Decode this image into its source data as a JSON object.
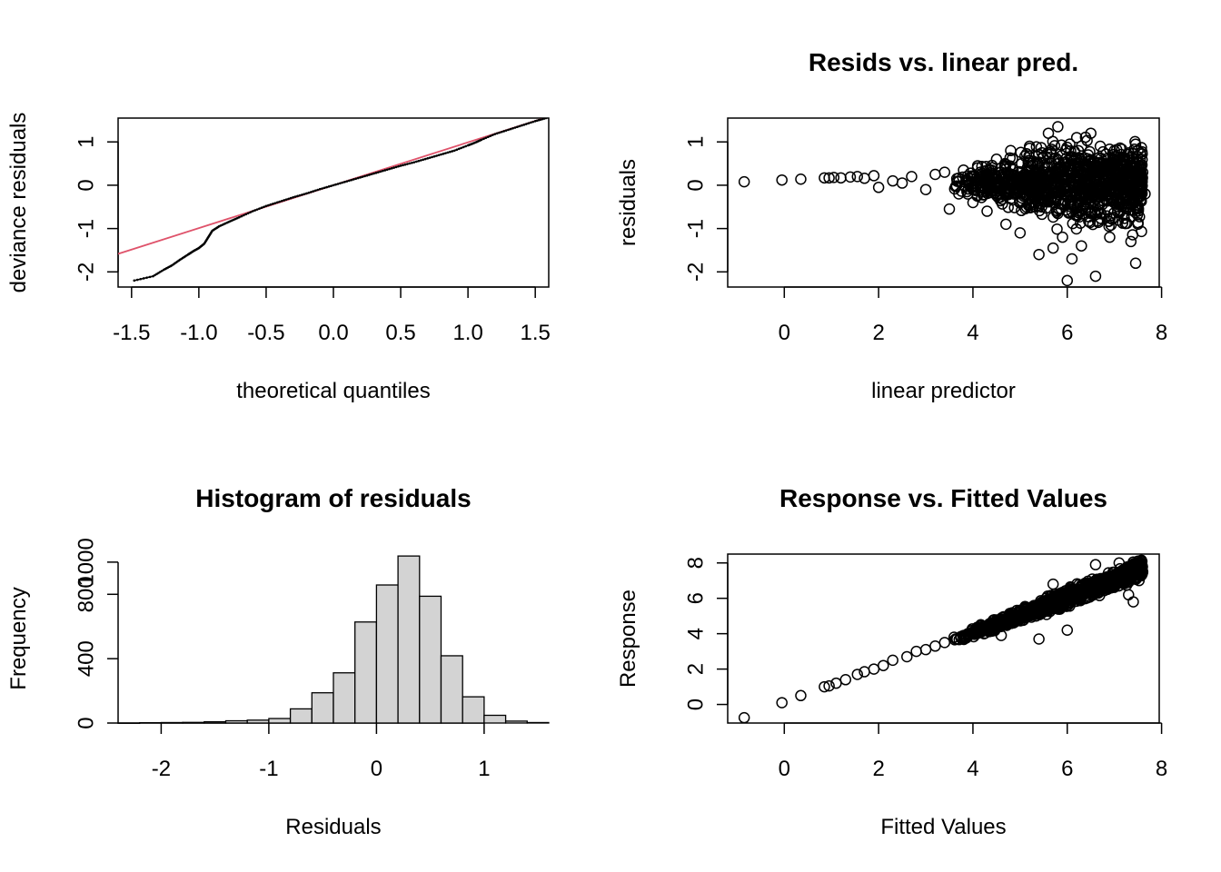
{
  "chart_data": [
    {
      "type": "scatter",
      "title": "",
      "xlabel": "theoretical quantiles",
      "ylabel": "deviance residuals",
      "xlim": [
        -1.6,
        1.6
      ],
      "ylim": [
        -2.35,
        1.55
      ],
      "xticks": [
        -1.5,
        -1.0,
        -0.5,
        0.0,
        0.5,
        1.0,
        1.5
      ],
      "xtick_labels": [
        "-1.5",
        "-1.0",
        "-0.5",
        "0.0",
        "0.5",
        "1.0",
        "1.5"
      ],
      "yticks": [
        -2,
        -1,
        0,
        1
      ],
      "ytick_labels": [
        "-2",
        "-1",
        "0",
        "1"
      ],
      "reference_line": {
        "intercept": 0.0,
        "slope": 0.99,
        "color": "#DF536B"
      },
      "points": [
        [
          -1.48,
          -2.2
        ],
        [
          -1.34,
          -2.1
        ],
        [
          -1.26,
          -1.95
        ],
        [
          -1.2,
          -1.85
        ],
        [
          -1.14,
          -1.72
        ],
        [
          -1.08,
          -1.6
        ],
        [
          -1.04,
          -1.52
        ],
        [
          -1.0,
          -1.45
        ],
        [
          -0.96,
          -1.35
        ],
        [
          -0.93,
          -1.2
        ],
        [
          -0.9,
          -1.05
        ],
        [
          -0.85,
          -0.95
        ],
        [
          -0.78,
          -0.85
        ],
        [
          -0.7,
          -0.74
        ],
        [
          -0.6,
          -0.6
        ],
        [
          -0.5,
          -0.48
        ],
        [
          -0.4,
          -0.38
        ],
        [
          -0.3,
          -0.28
        ],
        [
          -0.2,
          -0.19
        ],
        [
          -0.1,
          -0.09
        ],
        [
          0.0,
          0.0
        ],
        [
          0.1,
          0.09
        ],
        [
          0.2,
          0.18
        ],
        [
          0.3,
          0.27
        ],
        [
          0.4,
          0.36
        ],
        [
          0.5,
          0.45
        ],
        [
          0.6,
          0.53
        ],
        [
          0.7,
          0.62
        ],
        [
          0.8,
          0.71
        ],
        [
          0.9,
          0.8
        ],
        [
          1.0,
          0.92
        ],
        [
          1.05,
          0.98
        ],
        [
          1.1,
          1.05
        ],
        [
          1.2,
          1.18
        ],
        [
          1.3,
          1.28
        ],
        [
          1.4,
          1.38
        ],
        [
          1.5,
          1.48
        ],
        [
          1.58,
          1.55
        ]
      ],
      "point_color": "#000000"
    },
    {
      "type": "scatter",
      "title": "Resids vs. linear pred.",
      "xlabel": "linear predictor",
      "ylabel": "residuals",
      "xlim": [
        -1.2,
        7.95
      ],
      "ylim": [
        -2.35,
        1.55
      ],
      "xticks": [
        0,
        2,
        4,
        6,
        8
      ],
      "xtick_labels": [
        "0",
        "2",
        "4",
        "6",
        "8"
      ],
      "yticks": [
        -2,
        -1,
        0,
        1
      ],
      "ytick_labels": [
        "-2",
        "-1",
        "0",
        "1"
      ],
      "points": [
        [
          -0.85,
          0.08
        ],
        [
          -0.05,
          0.12
        ],
        [
          0.35,
          0.14
        ],
        [
          0.85,
          0.17
        ],
        [
          0.95,
          0.17
        ],
        [
          1.05,
          0.18
        ],
        [
          1.2,
          0.17
        ],
        [
          1.4,
          0.19
        ],
        [
          1.55,
          0.2
        ],
        [
          1.7,
          0.16
        ],
        [
          1.9,
          0.22
        ],
        [
          2.0,
          -0.05
        ],
        [
          2.3,
          0.1
        ],
        [
          2.5,
          0.05
        ],
        [
          2.7,
          0.2
        ],
        [
          3.0,
          -0.1
        ],
        [
          3.2,
          0.25
        ],
        [
          3.4,
          0.3
        ],
        [
          3.5,
          -0.55
        ],
        [
          3.7,
          -0.2
        ],
        [
          3.8,
          0.35
        ],
        [
          4.0,
          -0.4
        ],
        [
          4.1,
          0.45
        ],
        [
          4.3,
          -0.6
        ],
        [
          4.5,
          0.6
        ],
        [
          4.7,
          -0.9
        ],
        [
          4.8,
          0.8
        ],
        [
          5.0,
          -1.1
        ],
        [
          5.2,
          0.9
        ],
        [
          5.4,
          -1.6
        ],
        [
          5.6,
          1.2
        ],
        [
          5.7,
          -1.45
        ],
        [
          5.8,
          1.35
        ],
        [
          5.9,
          -1.2
        ],
        [
          6.0,
          -2.2
        ],
        [
          6.1,
          -1.7
        ],
        [
          6.2,
          1.1
        ],
        [
          6.3,
          -1.4
        ],
        [
          6.5,
          1.2
        ],
        [
          6.6,
          -2.1
        ],
        [
          6.7,
          0.9
        ],
        [
          6.9,
          -1.2
        ],
        [
          7.0,
          0.8
        ],
        [
          7.2,
          0.6
        ],
        [
          7.35,
          -1.3
        ],
        [
          7.45,
          -1.8
        ],
        [
          7.5,
          -0.9
        ],
        [
          7.6,
          0.3
        ],
        [
          7.65,
          -0.2
        ]
      ],
      "point_color": "#000000"
    },
    {
      "type": "bar",
      "title": "Histogram of residuals",
      "xlabel": "Residuals",
      "ylabel": "Frequency",
      "xlim": [
        -2.4,
        1.6
      ],
      "ylim": [
        0,
        1050
      ],
      "xticks": [
        -2,
        -1,
        0,
        1
      ],
      "xtick_labels": [
        "-2",
        "-1",
        "0",
        "1"
      ],
      "yticks": [
        0,
        400,
        800,
        1000
      ],
      "ytick_labels": [
        "0",
        "400",
        "800",
        "1000"
      ],
      "bin_edges": [
        -2.4,
        -2.2,
        -2.0,
        -1.8,
        -1.6,
        -1.4,
        -1.2,
        -1.0,
        -0.8,
        -0.6,
        -0.4,
        -0.2,
        0.0,
        0.2,
        0.4,
        0.6,
        0.8,
        1.0,
        1.2,
        1.4,
        1.6
      ],
      "values": [
        1,
        2,
        3,
        4,
        8,
        14,
        18,
        28,
        88,
        188,
        312,
        628,
        858,
        1038,
        788,
        418,
        163,
        48,
        12,
        3
      ],
      "bar_color": "#D3D3D3"
    },
    {
      "type": "scatter",
      "title": "Response vs. Fitted Values",
      "xlabel": "Fitted Values",
      "ylabel": "Response",
      "xlim": [
        -1.2,
        7.95
      ],
      "ylim": [
        -1.05,
        8.5
      ],
      "xticks": [
        0,
        2,
        4,
        6,
        8
      ],
      "xtick_labels": [
        "0",
        "2",
        "4",
        "6",
        "8"
      ],
      "yticks": [
        0,
        2,
        4,
        6,
        8
      ],
      "ytick_labels": [
        "0",
        "2",
        "4",
        "6",
        "8"
      ],
      "points": [
        [
          -0.85,
          -0.75
        ],
        [
          -0.05,
          0.1
        ],
        [
          0.35,
          0.5
        ],
        [
          0.85,
          1.0
        ],
        [
          0.95,
          1.05
        ],
        [
          1.1,
          1.2
        ],
        [
          1.3,
          1.4
        ],
        [
          1.55,
          1.7
        ],
        [
          1.7,
          1.85
        ],
        [
          1.9,
          2.0
        ],
        [
          2.1,
          2.2
        ],
        [
          2.3,
          2.5
        ],
        [
          2.6,
          2.7
        ],
        [
          2.8,
          3.0
        ],
        [
          3.0,
          3.1
        ],
        [
          3.2,
          3.3
        ],
        [
          3.4,
          3.5
        ],
        [
          3.6,
          3.8
        ],
        [
          3.8,
          3.9
        ],
        [
          4.0,
          4.1
        ],
        [
          4.2,
          4.4
        ],
        [
          4.4,
          4.5
        ],
        [
          4.6,
          4.8
        ],
        [
          4.8,
          4.9
        ],
        [
          5.0,
          5.1
        ],
        [
          5.2,
          5.4
        ],
        [
          5.4,
          5.6
        ],
        [
          5.6,
          5.8
        ],
        [
          5.8,
          6.0
        ],
        [
          6.0,
          6.2
        ],
        [
          6.2,
          6.3
        ],
        [
          6.4,
          6.6
        ],
        [
          6.6,
          6.8
        ],
        [
          6.8,
          7.0
        ],
        [
          7.0,
          7.2
        ],
        [
          7.2,
          7.4
        ],
        [
          7.4,
          7.6
        ],
        [
          7.5,
          7.8
        ],
        [
          7.6,
          7.5
        ],
        [
          7.4,
          5.8
        ],
        [
          7.3,
          6.2
        ],
        [
          5.4,
          3.7
        ],
        [
          6.0,
          4.2
        ],
        [
          4.6,
          3.9
        ],
        [
          5.7,
          6.8
        ],
        [
          6.6,
          7.9
        ],
        [
          7.1,
          8.0
        ],
        [
          7.5,
          8.1
        ]
      ],
      "point_color": "#000000"
    }
  ]
}
